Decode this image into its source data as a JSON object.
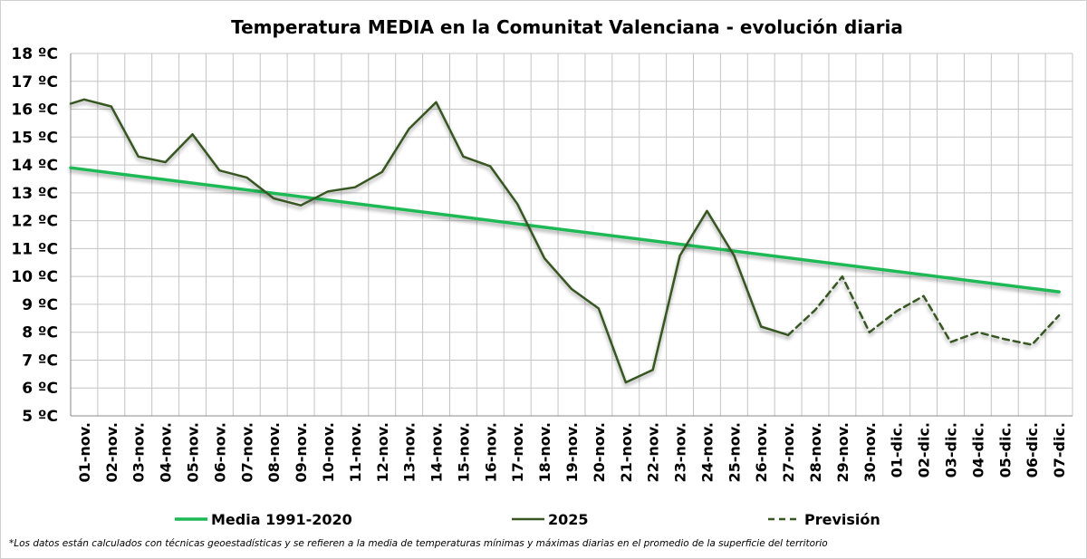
{
  "chart_data": {
    "type": "line",
    "title": "Temperatura MEDIA en la Comunitat Valenciana - evolución diaria",
    "xlabel": "",
    "ylabel": "",
    "ylim": [
      5,
      18
    ],
    "yticks": [
      5,
      6,
      7,
      8,
      9,
      10,
      11,
      12,
      13,
      14,
      15,
      16,
      17,
      18
    ],
    "ytick_labels": [
      "5 ºC",
      "6 ºC",
      "7 ºC",
      "8 ºC",
      "9 ºC",
      "10 ºC",
      "11 ºC",
      "12 ºC",
      "13 ºC",
      "14 ºC",
      "15 ºC",
      "16 ºC",
      "17 ºC",
      "18 ºC"
    ],
    "grid": true,
    "legend_position": "bottom",
    "categories": [
      "01-nov.",
      "02-nov.",
      "03-nov.",
      "04-nov.",
      "05-nov.",
      "06-nov.",
      "07-nov.",
      "08-nov.",
      "09-nov.",
      "10-nov.",
      "11-nov.",
      "12-nov.",
      "13-nov.",
      "14-nov.",
      "15-nov.",
      "16-nov.",
      "17-nov.",
      "18-nov.",
      "19-nov.",
      "20-nov.",
      "21-nov.",
      "22-nov.",
      "23-nov.",
      "24-nov.",
      "25-nov.",
      "26-nov.",
      "27-nov.",
      "28-nov.",
      "29-nov.",
      "30-nov.",
      "01-dic.",
      "02-dic.",
      "03-dic.",
      "04-dic.",
      "05-dic.",
      "06-dic.",
      "07-dic."
    ],
    "series": [
      {
        "name": "Media 1991-2020",
        "style": "solid",
        "color": "#1db954",
        "x": [
          0,
          36.5
        ],
        "values": [
          13.9,
          9.45
        ]
      },
      {
        "name": "2025",
        "style": "solid",
        "color": "#375623",
        "x": [
          0,
          0.5,
          1.5,
          2.5,
          3.5,
          4.5,
          5.5,
          6.5,
          7.5,
          8.5,
          9.5,
          10.5,
          11.5,
          12.5,
          13.5,
          14.5,
          15.5,
          16.5,
          17.5,
          18.5,
          19.5,
          20.5,
          21.5,
          22.5,
          23.5,
          24.5,
          25.5,
          26.5
        ],
        "values": [
          16.2,
          16.35,
          16.1,
          14.3,
          14.1,
          15.1,
          13.8,
          13.55,
          12.8,
          12.55,
          13.05,
          13.2,
          13.75,
          15.3,
          16.25,
          14.3,
          13.95,
          12.6,
          10.65,
          9.55,
          8.85,
          6.2,
          6.65,
          10.75,
          12.35,
          10.75,
          8.2,
          7.9
        ]
      },
      {
        "name": "Previsión",
        "style": "dashed",
        "color": "#375623",
        "x": [
          26.5,
          27.5,
          28.5,
          29.5,
          30.5,
          31.5,
          32.5,
          33.5,
          34.5,
          35.5,
          36.5
        ],
        "values": [
          7.9,
          8.8,
          10.0,
          8.0,
          8.75,
          9.3,
          7.65,
          8.0,
          7.75,
          7.55,
          8.6
        ]
      }
    ],
    "footnote": "*Los datos están calculados con técnicas geoestadísticas y se refieren a la media de temperaturas mínimas y máximas diarias en el promedio de la superficie del territorio"
  }
}
